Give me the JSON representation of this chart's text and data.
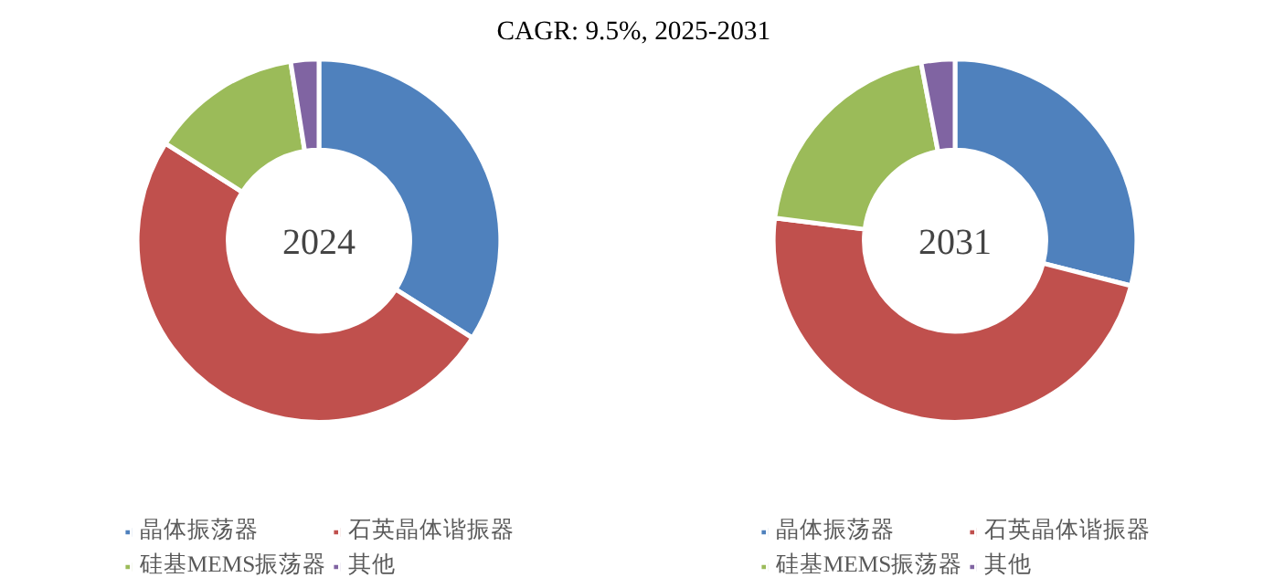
{
  "chart_data": [
    {
      "type": "donut",
      "title": "CAGR:  9.5%, 2025-2031",
      "annotations": [
        "2024"
      ],
      "categories": [
        "晶体振荡器",
        "石英晶体谐振器",
        "硅基MEMS振荡器",
        "其他"
      ],
      "values": [
        34,
        50,
        13.5,
        2.5
      ],
      "colors": [
        "#4f81bd",
        "#c0504d",
        "#9bbb59",
        "#8064a2"
      ],
      "legend": "bottom"
    },
    {
      "type": "donut",
      "annotations": [
        "2031"
      ],
      "categories": [
        "晶体振荡器",
        "石英晶体谐振器",
        "硅基MEMS振荡器",
        "其他"
      ],
      "values": [
        29,
        48,
        20,
        3
      ],
      "colors": [
        "#4f81bd",
        "#c0504d",
        "#9bbb59",
        "#8064a2"
      ],
      "legend": "bottom"
    }
  ]
}
